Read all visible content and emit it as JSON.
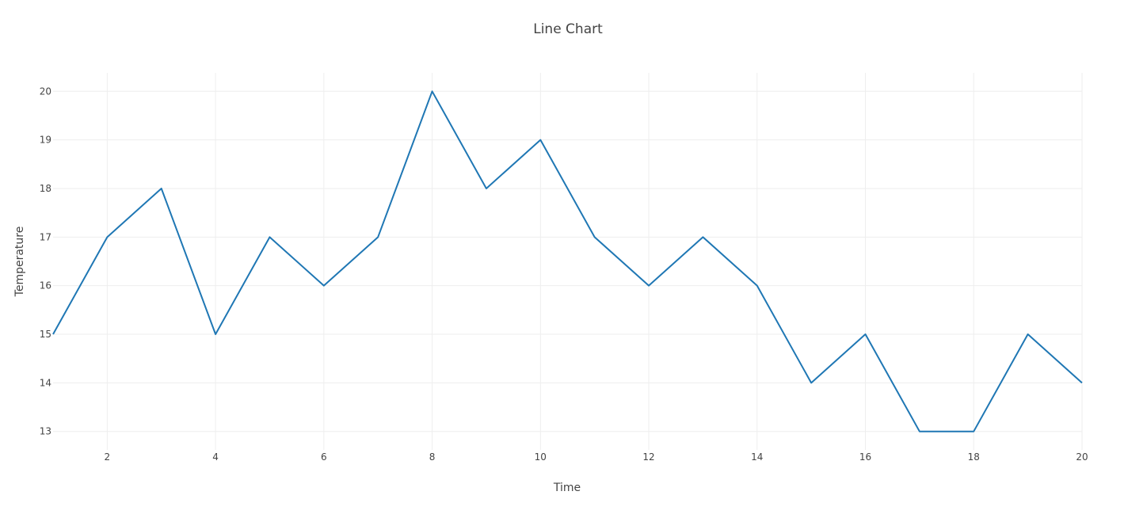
{
  "chart_data": {
    "type": "line",
    "title": "Line Chart",
    "xlabel": "Time",
    "ylabel": "Temperature",
    "x": [
      1,
      2,
      3,
      4,
      5,
      6,
      7,
      8,
      9,
      10,
      11,
      12,
      13,
      14,
      15,
      16,
      17,
      18,
      19,
      20
    ],
    "series": [
      {
        "values": [
          15,
          17,
          18,
          15,
          17,
          16,
          17,
          20,
          18,
          19,
          17,
          16,
          17,
          16,
          14,
          15,
          13,
          13,
          15,
          14
        ],
        "color": "#1f77b4"
      }
    ],
    "xlim": [
      1,
      20
    ],
    "ylim": [
      12.62,
      20.38
    ],
    "xticks": [
      2,
      4,
      6,
      8,
      10,
      12,
      14,
      16,
      18,
      20
    ],
    "yticks": [
      13,
      14,
      15,
      16,
      17,
      18,
      19,
      20
    ],
    "grid": true,
    "legend": "none"
  }
}
